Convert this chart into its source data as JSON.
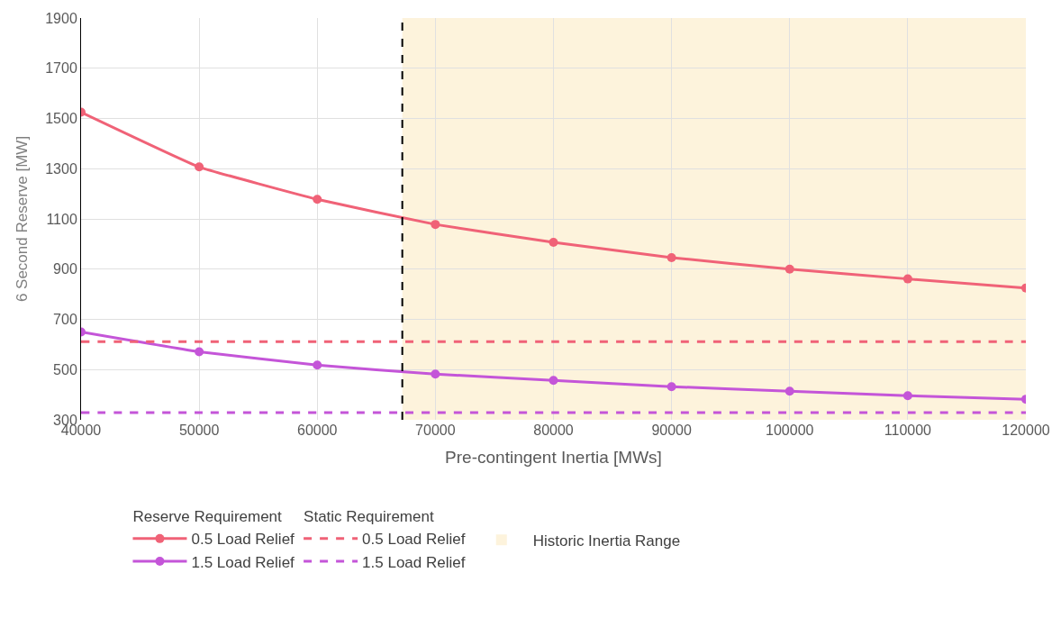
{
  "chart_data": {
    "type": "line",
    "xlabel": "Pre-contingent Inertia [MWs]",
    "ylabel": "6 Second Reserve [MW]",
    "x": [
      40000,
      50000,
      60000,
      70000,
      80000,
      90000,
      100000,
      110000,
      120000
    ],
    "series": [
      {
        "name": "0.5 Load Relief",
        "color": "#f06277",
        "marker": "circle",
        "line_style": "solid",
        "values": [
          1525,
          1307,
          1178,
          1078,
          1007,
          946,
          900,
          861,
          825
        ]
      },
      {
        "name": "1.5 Load Relief",
        "color": "#c455d8",
        "marker": "circle",
        "line_style": "solid",
        "values": [
          650,
          571,
          518,
          482,
          457,
          432,
          414,
          396,
          382
        ]
      },
      {
        "name": "0.5 Load Relief",
        "color": "#f06277",
        "marker": "none",
        "line_style": "dashed",
        "values": [
          611,
          611,
          611,
          611,
          611,
          611,
          611,
          611,
          611
        ]
      },
      {
        "name": "1.5 Load Relief",
        "color": "#c455d8",
        "marker": "none",
        "line_style": "dashed",
        "values": [
          329,
          329,
          329,
          329,
          329,
          329,
          329,
          329,
          329
        ]
      }
    ],
    "ref_lines": [
      {
        "axis": "x",
        "value": 67200,
        "color": "#000000",
        "line_style": "dashed"
      }
    ],
    "bands": [
      {
        "axis": "x",
        "from": 67200,
        "to": 120000,
        "label": "Historic Inertia Range",
        "color": "#fdf3dc"
      }
    ],
    "xlim": [
      40000,
      120000
    ],
    "xticks": [
      40000,
      50000,
      60000,
      70000,
      80000,
      90000,
      100000,
      110000,
      120000
    ],
    "ylim": [
      300,
      1900
    ],
    "yticks": [
      300,
      500,
      700,
      900,
      1100,
      1300,
      1500,
      1700,
      1900
    ],
    "annotations": [
      "Reserve Requirement",
      "Static Requirement"
    ],
    "grid": true,
    "legend": "bottom"
  }
}
